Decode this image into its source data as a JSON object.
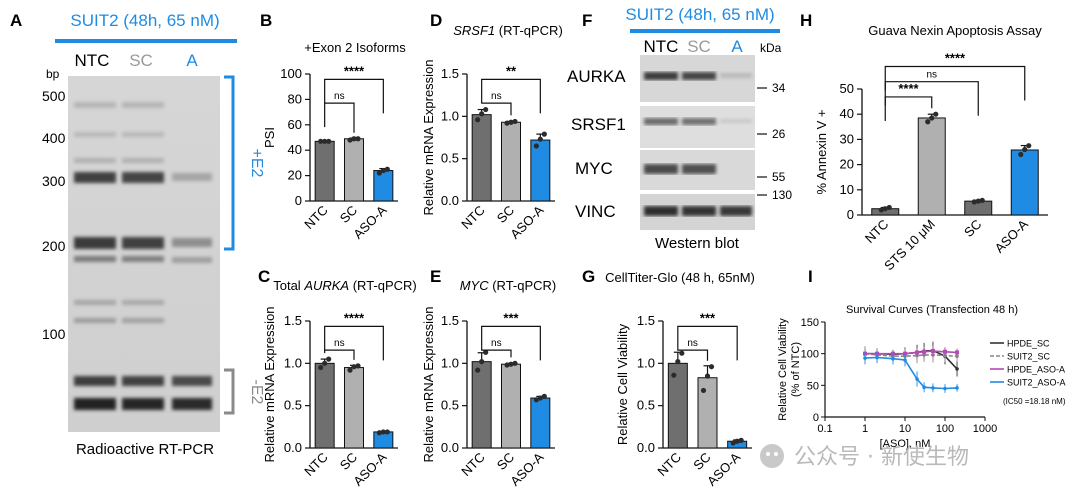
{
  "colors": {
    "dark": "#6f6f6f",
    "light": "#b0b0b0",
    "blue": "#1f8be3",
    "dot": "#2b2b2b",
    "hpde_sc": "#333333",
    "suit2_sc": "#8a8a8a",
    "hpde_asoa": "#b24bb2",
    "suit2_asoa": "#1f8be3",
    "sig": "#111111"
  },
  "panels": {
    "A": {
      "letter": "A",
      "header": "SUIT2 (48h, 65 nM)",
      "lanes": [
        "NTC",
        "SC",
        "A"
      ],
      "bp_label": "bp",
      "markers": [
        "500",
        "400",
        "300",
        "200",
        "100"
      ],
      "plus_label": "+E2",
      "minus_label": "-E2",
      "caption": "Radioactive RT-PCR"
    },
    "B": {
      "letter": "B"
    },
    "C": {
      "letter": "C"
    },
    "D": {
      "letter": "D"
    },
    "E": {
      "letter": "E"
    },
    "F": {
      "letter": "F",
      "header": "SUIT2 (48h, 65 nM)",
      "lanes": [
        "NTC",
        "SC",
        "A"
      ],
      "kda_label": "kDa",
      "rows": [
        "AURKA",
        "SRSF1",
        "MYC",
        "VINC"
      ],
      "kda": [
        "34",
        "26",
        "55",
        "130"
      ],
      "caption": "Western blot"
    },
    "G": {
      "letter": "G"
    },
    "H": {
      "letter": "H"
    },
    "I": {
      "letter": "I"
    }
  },
  "watermark": {
    "text": "公众号 · 新使生物"
  },
  "chart_data": [
    {
      "id": "B",
      "type": "bar",
      "title": "+Exon 2 Isoforms",
      "ylabel": "PSI",
      "categories": [
        "NTC",
        "SC",
        "ASO-A"
      ],
      "values": [
        47,
        49,
        24
      ],
      "points": [
        [
          47,
          47,
          47
        ],
        [
          48,
          49,
          49
        ],
        [
          22,
          24,
          25
        ]
      ],
      "ylim": [
        0,
        100
      ],
      "yticks": [
        "0",
        "20",
        "40",
        "60",
        "80",
        "100"
      ],
      "sig": [
        {
          "a": 0,
          "b": 1,
          "label": "ns"
        },
        {
          "a": 0,
          "b": 2,
          "label": "****"
        }
      ]
    },
    {
      "id": "C",
      "type": "bar",
      "title": "Total AURKA (RT-qPCR)",
      "title_parts": [
        "Total ",
        "AURKA",
        " (RT-qPCR)"
      ],
      "ylabel": "Relative mRNA Expression",
      "categories": [
        "NTC",
        "SC",
        "ASO-A"
      ],
      "values": [
        1.0,
        0.95,
        0.19
      ],
      "points": [
        [
          0.95,
          1.0,
          1.05
        ],
        [
          0.92,
          0.96,
          0.97
        ],
        [
          0.18,
          0.19,
          0.19
        ]
      ],
      "ylim": [
        0,
        1.5
      ],
      "yticks": [
        "0.0",
        "0.5",
        "1.0",
        "1.5"
      ],
      "sig": [
        {
          "a": 0,
          "b": 1,
          "label": "ns"
        },
        {
          "a": 0,
          "b": 2,
          "label": "****"
        }
      ]
    },
    {
      "id": "D",
      "type": "bar",
      "title": "SRSF1 (RT-qPCR)",
      "title_parts": [
        "",
        "SRSF1",
        " (RT-qPCR)"
      ],
      "ylabel": "Relative mRNA Expression",
      "categories": [
        "NTC",
        "SC",
        "ASO-A"
      ],
      "values": [
        1.02,
        0.93,
        0.72
      ],
      "points": [
        [
          0.96,
          1.03,
          1.08
        ],
        [
          0.92,
          0.93,
          0.94
        ],
        [
          0.65,
          0.73,
          0.79
        ]
      ],
      "ylim": [
        0,
        1.5
      ],
      "yticks": [
        "0.0",
        "0.5",
        "1.0",
        "1.5"
      ],
      "sig": [
        {
          "a": 0,
          "b": 1,
          "label": "ns"
        },
        {
          "a": 0,
          "b": 2,
          "label": "**"
        }
      ]
    },
    {
      "id": "E",
      "type": "bar",
      "title": "MYC (RT-qPCR)",
      "title_parts": [
        "",
        "MYC",
        " (RT-qPCR)"
      ],
      "ylabel": "Relative mRNA Expression",
      "categories": [
        "NTC",
        "SC",
        "ASO-A"
      ],
      "values": [
        1.02,
        0.99,
        0.59
      ],
      "points": [
        [
          0.92,
          1.02,
          1.13
        ],
        [
          0.98,
          0.99,
          1.0
        ],
        [
          0.57,
          0.59,
          0.61
        ]
      ],
      "ylim": [
        0,
        1.5
      ],
      "yticks": [
        "0.0",
        "0.5",
        "1.0",
        "1.5"
      ],
      "sig": [
        {
          "a": 0,
          "b": 1,
          "label": "ns"
        },
        {
          "a": 0,
          "b": 2,
          "label": "***"
        }
      ]
    },
    {
      "id": "G",
      "type": "bar",
      "title": "CellTiter-Glo (48 h, 65nM)",
      "ylabel": "Relative Cell Viability",
      "categories": [
        "NTC",
        "SC",
        "ASO-A"
      ],
      "values": [
        1.0,
        0.83,
        0.08
      ],
      "points": [
        [
          0.86,
          1.02,
          1.12
        ],
        [
          0.68,
          0.85,
          0.96
        ],
        [
          0.06,
          0.08,
          0.09
        ]
      ],
      "ylim": [
        0,
        1.5
      ],
      "yticks": [
        "0.0",
        "0.5",
        "1.0",
        "1.5"
      ],
      "sig": [
        {
          "a": 0,
          "b": 1,
          "label": "ns"
        },
        {
          "a": 0,
          "b": 2,
          "label": "***"
        }
      ]
    },
    {
      "id": "H",
      "type": "bar",
      "title": "Guava Nexin Apoptosis Assay",
      "ylabel": "% Annexin V +",
      "categories": [
        "NTC",
        "STS 10 μM",
        "SC",
        "ASO-A"
      ],
      "values": [
        2.5,
        38.5,
        5.5,
        25.8
      ],
      "points": [
        [
          2,
          2.5,
          3
        ],
        [
          37,
          38.5,
          40
        ],
        [
          5.2,
          5.5,
          5.8
        ],
        [
          24,
          26,
          27.5
        ]
      ],
      "ylim": [
        0,
        50
      ],
      "yticks": [
        "0",
        "10",
        "20",
        "30",
        "40",
        "50"
      ],
      "sig": [
        {
          "a": 0,
          "b": 1,
          "label": "****"
        },
        {
          "a": 0,
          "b": 2,
          "label": "ns"
        },
        {
          "a": 0,
          "b": 3,
          "label": "****"
        }
      ]
    },
    {
      "id": "I",
      "type": "line",
      "title": "Survival Curves (Transfection 48 h)",
      "xlabel": "[ASO], nM",
      "ylabel": "Relative Cell Viability (% of NTC)",
      "ylabel_lines": [
        "Relative Cell Viability",
        "(% of NTC)"
      ],
      "xscale": "log",
      "xlim": [
        0.1,
        1000
      ],
      "xticks": [
        "0.1",
        "1",
        "10",
        "100",
        "1000"
      ],
      "ylim": [
        0,
        150
      ],
      "yticks": [
        "0",
        "50",
        "100",
        "150"
      ],
      "series": [
        {
          "name": "HPDE_SC",
          "x": [
            1,
            2,
            5,
            10,
            20,
            30,
            50,
            100,
            200
          ],
          "y": [
            100,
            100,
            99,
            100,
            102,
            104,
            105,
            96,
            76
          ],
          "err": [
            9,
            8,
            7,
            10,
            12,
            13,
            14,
            13,
            12
          ]
        },
        {
          "name": "SUIT2_SC",
          "x": [
            1,
            2,
            5,
            10,
            20,
            30,
            50,
            100,
            200
          ],
          "y": [
            100,
            98,
            96,
            96,
            97,
            98,
            98,
            97,
            96
          ],
          "err": [
            12,
            11,
            10,
            12,
            12,
            11,
            12,
            10,
            9
          ]
        },
        {
          "name": "HPDE_ASO-A",
          "x": [
            1,
            2,
            5,
            10,
            20,
            30,
            50,
            100,
            200
          ],
          "y": [
            100,
            100,
            100,
            100,
            102,
            103,
            104,
            103,
            102
          ],
          "err": [
            5,
            5,
            6,
            6,
            7,
            8,
            8,
            7,
            6
          ]
        },
        {
          "name": "SUIT2_ASO-A",
          "x": [
            1,
            2,
            5,
            10,
            20,
            30,
            50,
            100,
            200
          ],
          "y": [
            93,
            94,
            92,
            90,
            60,
            47,
            46,
            45,
            46
          ],
          "err": [
            10,
            9,
            9,
            10,
            12,
            8,
            7,
            7,
            6
          ],
          "note": "(IC50 =18.18 nM)"
        }
      ]
    }
  ]
}
